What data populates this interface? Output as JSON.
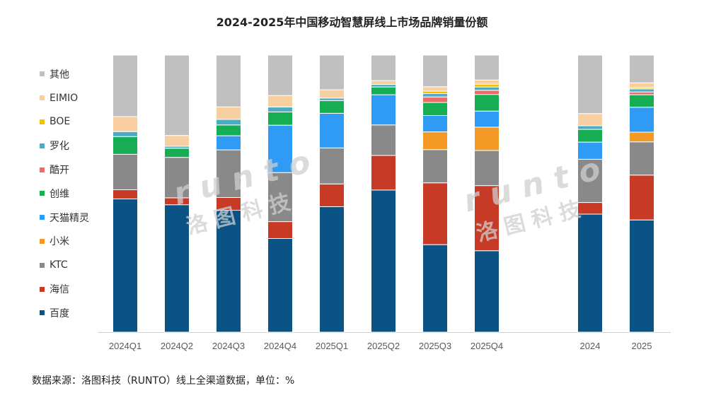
{
  "chart_data": {
    "type": "bar",
    "stacked": true,
    "percent": true,
    "title": "2024-2025年中国移动智慧屏线上市场品牌销量份额",
    "xlabel": "",
    "ylabel": "",
    "ylim": [
      0,
      100
    ],
    "categories": [
      "2024Q1",
      "2024Q2",
      "2024Q3",
      "2024Q4",
      "2025Q1",
      "2025Q2",
      "2025Q3",
      "2025Q4",
      "2024",
      "2025"
    ],
    "series": [
      {
        "name": "百度",
        "color": "#0b5384",
        "values": [
          48.1,
          46.0,
          44.0,
          33.8,
          45.3,
          51.3,
          31.6,
          29.4,
          42.6,
          40.5
        ]
      },
      {
        "name": "海信",
        "color": "#c73a26",
        "values": [
          3.3,
          2.5,
          4.6,
          6.1,
          8.2,
          12.5,
          22.3,
          23.5,
          4.2,
          16.2
        ]
      },
      {
        "name": "KTC",
        "color": "#898989",
        "values": [
          12.8,
          14.6,
          17.2,
          17.7,
          13.0,
          11.0,
          12.0,
          12.7,
          15.6,
          12.0
        ]
      },
      {
        "name": "小米",
        "color": "#f29a25",
        "values": [
          0,
          0,
          0,
          0,
          0,
          0,
          6.4,
          8.4,
          0,
          3.5
        ]
      },
      {
        "name": "天猫精灵",
        "color": "#2f9bf4",
        "values": [
          0,
          0,
          5.1,
          17.1,
          12.5,
          10.9,
          5.9,
          5.8,
          6.2,
          9.0
        ]
      },
      {
        "name": "创维",
        "color": "#17ad52",
        "values": [
          6.4,
          3.3,
          3.9,
          4.8,
          4.6,
          2.8,
          4.7,
          6.0,
          4.6,
          4.5
        ]
      },
      {
        "name": "酷开",
        "color": "#ef6b6b",
        "values": [
          0,
          0,
          0,
          0,
          0,
          0,
          2.0,
          1.5,
          0,
          1.0
        ]
      },
      {
        "name": "罗化",
        "color": "#4bacc6",
        "values": [
          1.8,
          0.7,
          2.0,
          1.8,
          0.9,
          0.9,
          1.2,
          1.2,
          1.3,
          1.1
        ]
      },
      {
        "name": "BOE",
        "color": "#f5c000",
        "values": [
          0,
          0,
          0,
          0,
          0,
          0,
          0.9,
          1.0,
          0,
          0.5
        ]
      },
      {
        "name": "EIMIO",
        "color": "#f8cfa0",
        "values": [
          5.4,
          3.9,
          4.5,
          4.1,
          3.0,
          1.4,
          1.6,
          1.5,
          4.4,
          1.7
        ]
      },
      {
        "name": "其他",
        "color": "#c0c0c0",
        "values": [
          22.2,
          29.0,
          18.7,
          14.6,
          12.5,
          9.2,
          11.4,
          9.0,
          21.1,
          10.0
        ]
      }
    ],
    "grid": false,
    "legend": "left"
  },
  "source_note": "数据来源：洛图科技（RUNTO）线上全渠道数据，单位：%",
  "watermark": {
    "brand": "RUNTO",
    "cn": "洛图科技"
  }
}
